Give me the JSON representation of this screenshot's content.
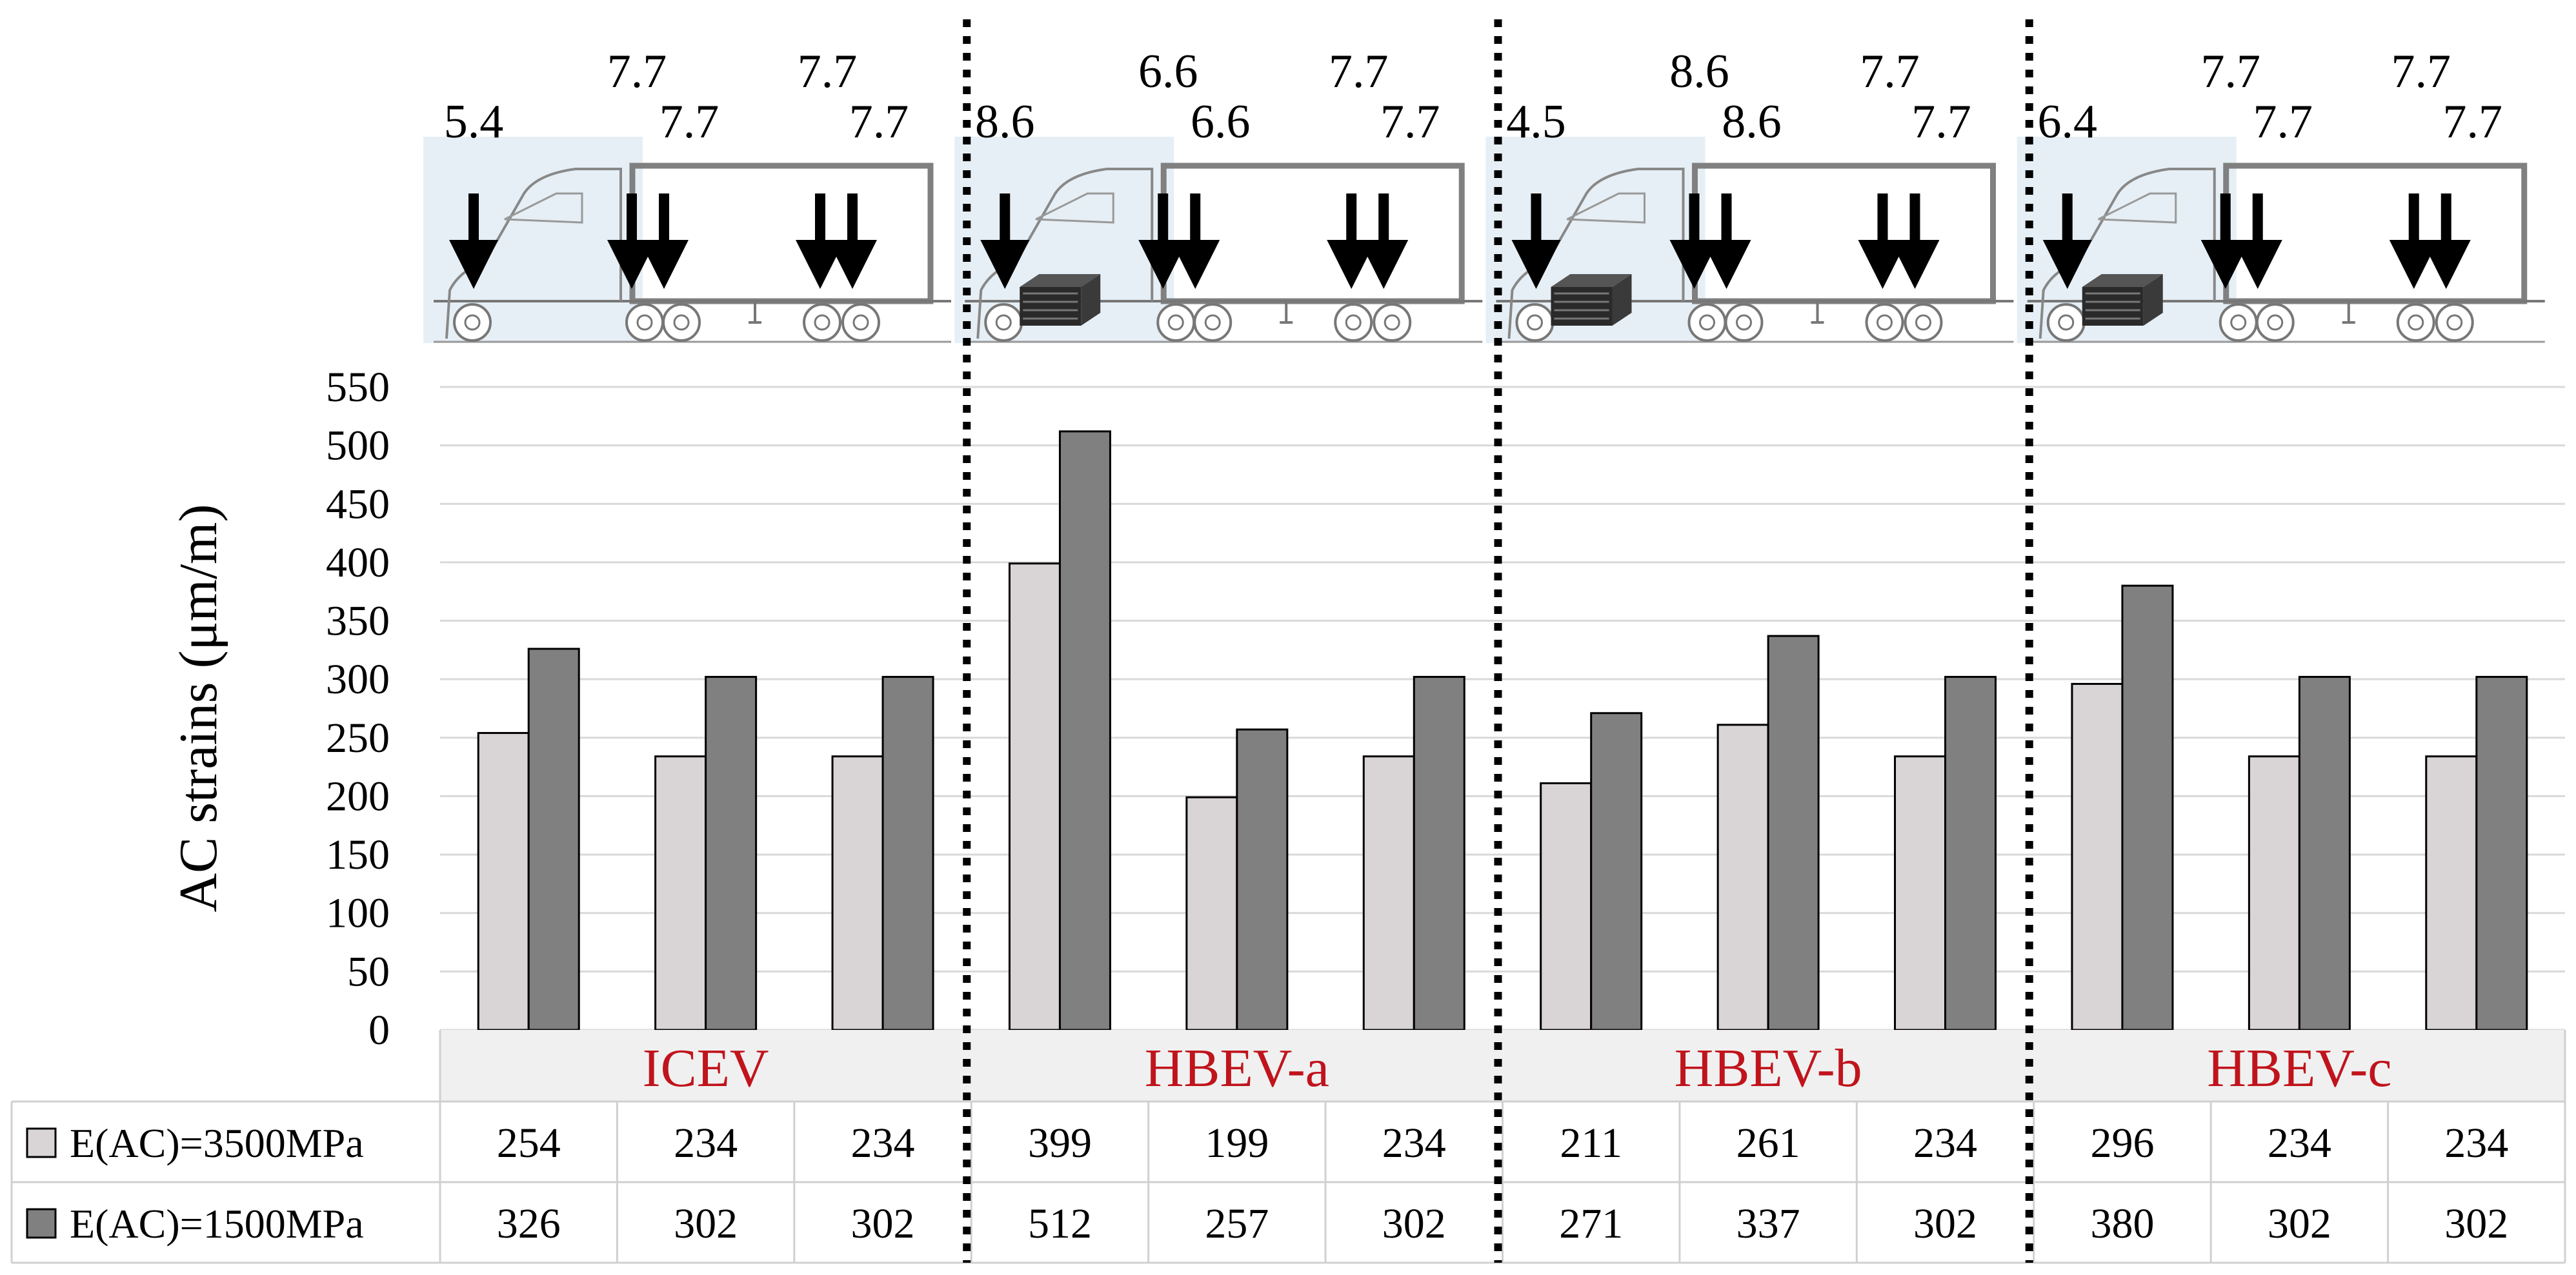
{
  "chart_data": {
    "type": "bar",
    "ylabel": "AC strains (μm/m)",
    "ylim": [
      0,
      550
    ],
    "yticks": [
      0,
      50,
      100,
      150,
      200,
      250,
      300,
      350,
      400,
      450,
      500,
      550
    ],
    "grid": true,
    "groups": [
      {
        "label": "ICEV",
        "axle_loads": [
          "5.4",
          "7.7",
          "7.7",
          "7.7",
          "7.7"
        ],
        "battery": false
      },
      {
        "label": "HBEV-a",
        "axle_loads": [
          "8.6",
          "6.6",
          "6.6",
          "7.7",
          "7.7"
        ],
        "battery": true
      },
      {
        "label": "HBEV-b",
        "axle_loads": [
          "4.5",
          "8.6",
          "8.6",
          "7.7",
          "7.7"
        ],
        "battery": true
      },
      {
        "label": "HBEV-c",
        "axle_loads": [
          "6.4",
          "7.7",
          "7.7",
          "7.7",
          "7.7"
        ],
        "battery": true
      }
    ],
    "series": [
      {
        "name": "E(AC)=3500MPa",
        "color": "#d9d4d6",
        "values": [
          254,
          234,
          234,
          399,
          199,
          234,
          211,
          261,
          234,
          296,
          234,
          234
        ]
      },
      {
        "name": "E(AC)=1500MPa",
        "color": "#808080",
        "values": [
          326,
          302,
          302,
          512,
          257,
          302,
          271,
          337,
          302,
          380,
          302,
          302
        ]
      }
    ],
    "category_label_color": "#c0141c",
    "table_values": [
      [
        "254",
        "234",
        "234",
        "399",
        "199",
        "234",
        "211",
        "261",
        "234",
        "296",
        "234",
        "234"
      ],
      [
        "326",
        "302",
        "302",
        "512",
        "257",
        "302",
        "271",
        "337",
        "302",
        "380",
        "302",
        "302"
      ]
    ]
  }
}
